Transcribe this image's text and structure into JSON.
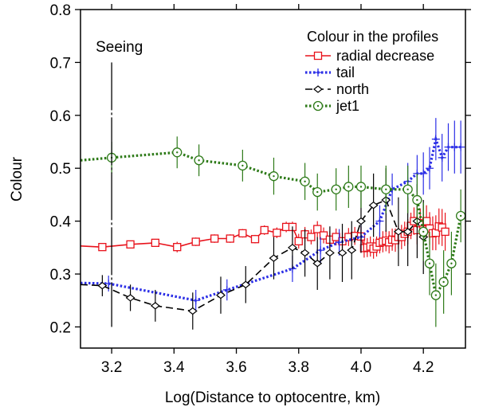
{
  "chart_data": {
    "type": "line",
    "title": "",
    "xlabel": "Log(Distance to optocentre, km)",
    "ylabel": "Colour",
    "xlim": [
      3.1,
      4.335
    ],
    "ylim": [
      0.16,
      0.8
    ],
    "x_ticks": [
      3.2,
      3.4,
      3.6,
      3.8,
      4.0,
      4.2
    ],
    "x_tick_labels": [
      "3.2",
      "3.4",
      "3.6",
      "3.8",
      "4.0",
      "4.2"
    ],
    "y_ticks": [
      0.2,
      0.3,
      0.4,
      0.5,
      0.6,
      0.7,
      0.8
    ],
    "y_tick_labels": [
      "0.2",
      "0.3",
      "0.4",
      "0.5",
      "0.6",
      "0.7",
      "0.8"
    ],
    "grid": false,
    "legend_position": "top-right",
    "legend_title": "Colour in the profiles",
    "annotations": [
      {
        "text": "Seeing",
        "x": 3.2,
        "y_from": 0.2,
        "y_to": 0.7
      }
    ],
    "series": [
      {
        "name": "radial decrease",
        "color": "#e8121b",
        "line_style": "solid",
        "marker": "square",
        "points": [
          [
            3.1,
            0.353,
            0
          ],
          [
            3.17,
            0.351,
            0.006
          ],
          [
            3.26,
            0.356,
            0.006
          ],
          [
            3.34,
            0.359,
            0.006
          ],
          [
            3.41,
            0.351,
            0.01
          ],
          [
            3.47,
            0.361,
            0.008
          ],
          [
            3.53,
            0.367,
            0.008
          ],
          [
            3.58,
            0.367,
            0.008
          ],
          [
            3.62,
            0.377,
            0.008
          ],
          [
            3.66,
            0.366,
            0.008
          ],
          [
            3.69,
            0.383,
            0.009
          ],
          [
            3.73,
            0.378,
            0.01
          ],
          [
            3.76,
            0.389,
            0.01
          ],
          [
            3.78,
            0.389,
            0.01
          ],
          [
            3.8,
            0.362,
            0.014
          ],
          [
            3.82,
            0.375,
            0.014
          ],
          [
            3.84,
            0.37,
            0.014
          ],
          [
            3.86,
            0.385,
            0.015
          ],
          [
            3.88,
            0.373,
            0.015
          ],
          [
            3.9,
            0.365,
            0.016
          ],
          [
            3.92,
            0.37,
            0.016
          ],
          [
            3.94,
            0.362,
            0.016
          ],
          [
            3.96,
            0.37,
            0.017
          ],
          [
            3.98,
            0.372,
            0.017
          ],
          [
            4.0,
            0.371,
            0.018
          ],
          [
            4.01,
            0.349,
            0.018
          ],
          [
            4.02,
            0.35,
            0.018
          ],
          [
            4.03,
            0.352,
            0.019
          ],
          [
            4.04,
            0.348,
            0.019
          ],
          [
            4.05,
            0.352,
            0.019
          ],
          [
            4.06,
            0.359,
            0.02
          ],
          [
            4.07,
            0.361,
            0.02
          ],
          [
            4.08,
            0.363,
            0.02
          ],
          [
            4.09,
            0.36,
            0.021
          ],
          [
            4.1,
            0.365,
            0.021
          ],
          [
            4.11,
            0.364,
            0.022
          ],
          [
            4.12,
            0.37,
            0.022
          ],
          [
            4.13,
            0.37,
            0.023
          ],
          [
            4.14,
            0.376,
            0.023
          ],
          [
            4.15,
            0.38,
            0.024
          ],
          [
            4.16,
            0.391,
            0.025
          ],
          [
            4.17,
            0.4,
            0.026
          ],
          [
            4.18,
            0.383,
            0.027
          ],
          [
            4.19,
            0.396,
            0.028
          ],
          [
            4.2,
            0.384,
            0.029
          ],
          [
            4.21,
            0.4,
            0.03
          ],
          [
            4.22,
            0.386,
            0.031
          ],
          [
            4.23,
            0.377,
            0.032
          ],
          [
            4.24,
            0.378,
            0.033
          ],
          [
            4.25,
            0.39,
            0.034
          ],
          [
            4.26,
            0.388,
            0.035
          ],
          [
            4.27,
            0.38,
            0.036
          ]
        ]
      },
      {
        "name": "tail",
        "color": "#2b2ee6",
        "line_style": "dotted",
        "marker": "plus",
        "points": [
          [
            3.1,
            0.283,
            0
          ],
          [
            3.19,
            0.282,
            0.015
          ],
          [
            3.47,
            0.25,
            0.02
          ],
          [
            3.57,
            0.27,
            0.02
          ],
          [
            3.78,
            0.31,
            0.025
          ],
          [
            3.87,
            0.345,
            0.025
          ],
          [
            3.93,
            0.36,
            0.025
          ],
          [
            4.0,
            0.37,
            0.027
          ],
          [
            4.06,
            0.4,
            0.03
          ],
          [
            4.1,
            0.46,
            0.03
          ],
          [
            4.15,
            0.475,
            0.035
          ],
          [
            4.18,
            0.49,
            0.035
          ],
          [
            4.2,
            0.49,
            0.04
          ],
          [
            4.22,
            0.5,
            0.04
          ],
          [
            4.24,
            0.555,
            0.04
          ],
          [
            4.26,
            0.52,
            0.045
          ],
          [
            4.28,
            0.54,
            0.045
          ],
          [
            4.3,
            0.54,
            0.05
          ],
          [
            4.32,
            0.54,
            0.05
          ]
        ]
      },
      {
        "name": "north",
        "color": "#000000",
        "line_style": "dashed",
        "marker": "diamond",
        "points": [
          [
            3.1,
            0.28,
            0
          ],
          [
            3.17,
            0.278,
            0.02
          ],
          [
            3.26,
            0.255,
            0.025
          ],
          [
            3.34,
            0.24,
            0.03
          ],
          [
            3.46,
            0.23,
            0.035
          ],
          [
            3.55,
            0.26,
            0.035
          ],
          [
            3.63,
            0.28,
            0.035
          ],
          [
            3.72,
            0.33,
            0.04
          ],
          [
            3.78,
            0.35,
            0.04
          ],
          [
            3.82,
            0.34,
            0.045
          ],
          [
            3.86,
            0.32,
            0.05
          ],
          [
            3.9,
            0.34,
            0.05
          ],
          [
            3.94,
            0.34,
            0.055
          ],
          [
            3.97,
            0.345,
            0.055
          ],
          [
            4.0,
            0.4,
            0.06
          ],
          [
            4.04,
            0.43,
            0.06
          ],
          [
            4.08,
            0.44,
            0.06
          ],
          [
            4.12,
            0.38,
            0.065
          ],
          [
            4.15,
            0.38,
            0.065
          ],
          [
            4.18,
            0.4,
            0.07
          ],
          [
            4.2,
            0.37,
            0.07
          ]
        ]
      },
      {
        "name": "jet1",
        "color": "#2d7a18",
        "line_style": "dotted",
        "marker": "circle",
        "points": [
          [
            3.1,
            0.515,
            0
          ],
          [
            3.2,
            0.52,
            0.03
          ],
          [
            3.41,
            0.53,
            0.03
          ],
          [
            3.48,
            0.515,
            0.03
          ],
          [
            3.62,
            0.505,
            0.03
          ],
          [
            3.72,
            0.485,
            0.035
          ],
          [
            3.82,
            0.475,
            0.035
          ],
          [
            3.86,
            0.455,
            0.035
          ],
          [
            3.92,
            0.46,
            0.04
          ],
          [
            3.96,
            0.465,
            0.04
          ],
          [
            4.0,
            0.465,
            0.04
          ],
          [
            4.08,
            0.46,
            0.045
          ],
          [
            4.15,
            0.46,
            0.045
          ],
          [
            4.18,
            0.44,
            0.05
          ],
          [
            4.2,
            0.38,
            0.055
          ],
          [
            4.22,
            0.32,
            0.06
          ],
          [
            4.24,
            0.26,
            0.06
          ],
          [
            4.265,
            0.285,
            0.06
          ],
          [
            4.29,
            0.32,
            0.06
          ],
          [
            4.32,
            0.41,
            0.05
          ]
        ]
      }
    ]
  }
}
